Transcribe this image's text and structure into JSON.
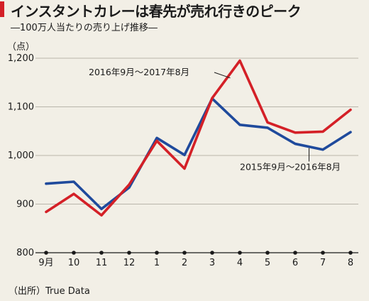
{
  "title": "インスタントカレーは春先が売れ行きのピーク",
  "subtitle": "―100万人当たりの売り上げ推移―",
  "source": "（出所）True Data",
  "chart_data": {
    "type": "line",
    "ylabel": "（点）",
    "categories": [
      "9月",
      "10",
      "11",
      "12",
      "1",
      "2",
      "3",
      "4",
      "5",
      "6",
      "7",
      "8"
    ],
    "yticks": [
      "800",
      "900",
      "1,000",
      "1,100",
      "1,200"
    ],
    "ylim": [
      800,
      1200
    ],
    "grid": true,
    "series": [
      {
        "name": "2016年9月～2017年8月",
        "color": "#d42027",
        "values": [
          884,
          921,
          877,
          940,
          1030,
          973,
          1118,
          1195,
          1068,
          1047,
          1049,
          1094
        ]
      },
      {
        "name": "2015年9月～2016年8月",
        "color": "#1f4a9c",
        "values": [
          942,
          946,
          890,
          934,
          1036,
          1001,
          1117,
          1063,
          1057,
          1024,
          1012,
          1048
        ]
      }
    ]
  }
}
